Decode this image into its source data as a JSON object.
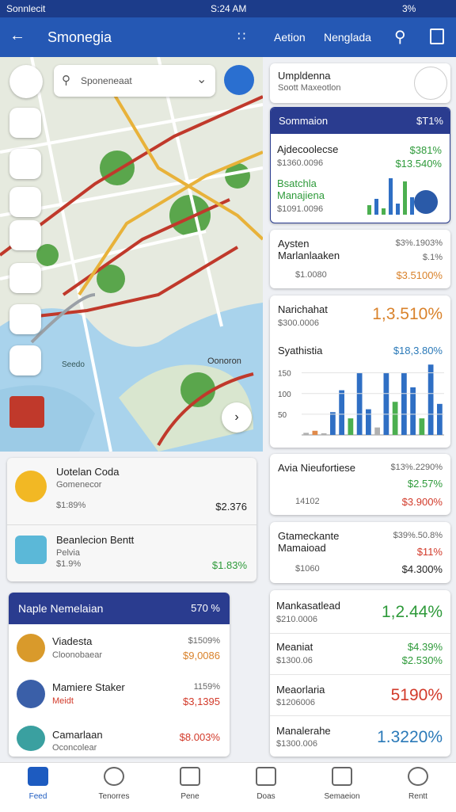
{
  "status_bar": {
    "carrier": "Sonnlecit",
    "time": "S:24 AM",
    "battery": "3%"
  },
  "app_bar": {
    "title": "Smonegia",
    "actions": [
      "Aetion",
      "Nenglada"
    ]
  },
  "map": {
    "search_placeholder": "Sponeneaat",
    "labels": [
      "Oonoron",
      "Seedo"
    ]
  },
  "places": [
    {
      "name": "Uotelan Coda",
      "subtitle": "Gomenecor",
      "change": "$1:89%",
      "price": "$2.376"
    },
    {
      "name": "Beanlecion Bentt",
      "subtitle": "Pelvia",
      "change": "$1.9%",
      "price": "$1.83%"
    }
  ],
  "watchlist": {
    "title": "Naple Nemelaian",
    "total": "570 %",
    "rows": [
      {
        "name": "Viadesta",
        "subtitle": "Cloonobaear",
        "change": "$1509%",
        "price": "$9,0086"
      },
      {
        "name": "Mamiere Staker",
        "subtitle": "Meidt",
        "change": "1159%",
        "price": "$3,1395"
      },
      {
        "name": "Camarlaan",
        "subtitle": "Oconcolear",
        "price": "$8.003%"
      }
    ]
  },
  "profile": {
    "title": "Umpldenna",
    "subtitle": "Soott Maxeotlon"
  },
  "summary": {
    "title": "Sommaion",
    "total": "$T1%",
    "items": [
      {
        "name": "Ajdecoolecse",
        "amount": "$1360.0096",
        "change": "$381%",
        "value": "$13.540%"
      },
      {
        "name": "Bsatchla Manajiena",
        "amount": "$1091.0096"
      }
    ],
    "chart": {
      "values": [
        12,
        20,
        8,
        46,
        14,
        42,
        22
      ],
      "colors": [
        "#4caf50",
        "#2f6fc4",
        "#4caf50",
        "#2f6fc4",
        "#2f6fc4",
        "#4caf50",
        "#2f6fc4"
      ]
    }
  },
  "cards": [
    {
      "name": "Aysten Marlanlaaken",
      "range": "$3%.1903%",
      "change": "$.1%",
      "amount": "$1.0080",
      "value": "$3.5100%"
    },
    {
      "name": "Avia Nieufortiese",
      "range": "$13%.2290%",
      "change": "$2.57%",
      "amount": "14102",
      "value": "$3.900%"
    },
    {
      "name": "Gtameckante Mamaioad",
      "range": "$39%.50.8%",
      "change": "$11%",
      "amount": "$1060",
      "value": "$4.300%"
    }
  ],
  "stats": {
    "name": "Narichahat",
    "amount": "$300.0006",
    "value": "1,3.510%",
    "chart_title": "Syathistia",
    "chart_value": "$18,3.80%",
    "chart": {
      "ylim": [
        0,
        180
      ],
      "yticks": [
        50,
        100,
        150
      ],
      "values": [
        5,
        10,
        4,
        55,
        108,
        40,
        150,
        62,
        18,
        150,
        80,
        150,
        115,
        40,
        170,
        75
      ],
      "colors": [
        "#b0b0b0",
        "#e08a4a",
        "#b0b0b0",
        "#2f6fc4",
        "#2f6fc4",
        "#4caf50",
        "#2f6fc4",
        "#2f6fc4",
        "#b0b0b0",
        "#2f6fc4",
        "#4caf50",
        "#2f6fc4",
        "#2f6fc4",
        "#4caf50",
        "#2f6fc4",
        "#2f6fc4"
      ]
    }
  },
  "list": [
    {
      "name": "Mankasatlead",
      "amount": "$210.0006",
      "value": "1,2.44%"
    },
    {
      "name": "Meaniat",
      "amount": "$1300.06",
      "change": "$4.39%",
      "value": "$2.530%"
    },
    {
      "name": "Meaorlaria",
      "amount": "$1206006",
      "value": "5190%"
    },
    {
      "name": "Manalerahe",
      "amount": "$1300.006",
      "value": "1.3220%"
    }
  ],
  "nav": [
    "Feed",
    "Tenorres",
    "Pene",
    "Doas",
    "Semaeion",
    "Rentt"
  ]
}
